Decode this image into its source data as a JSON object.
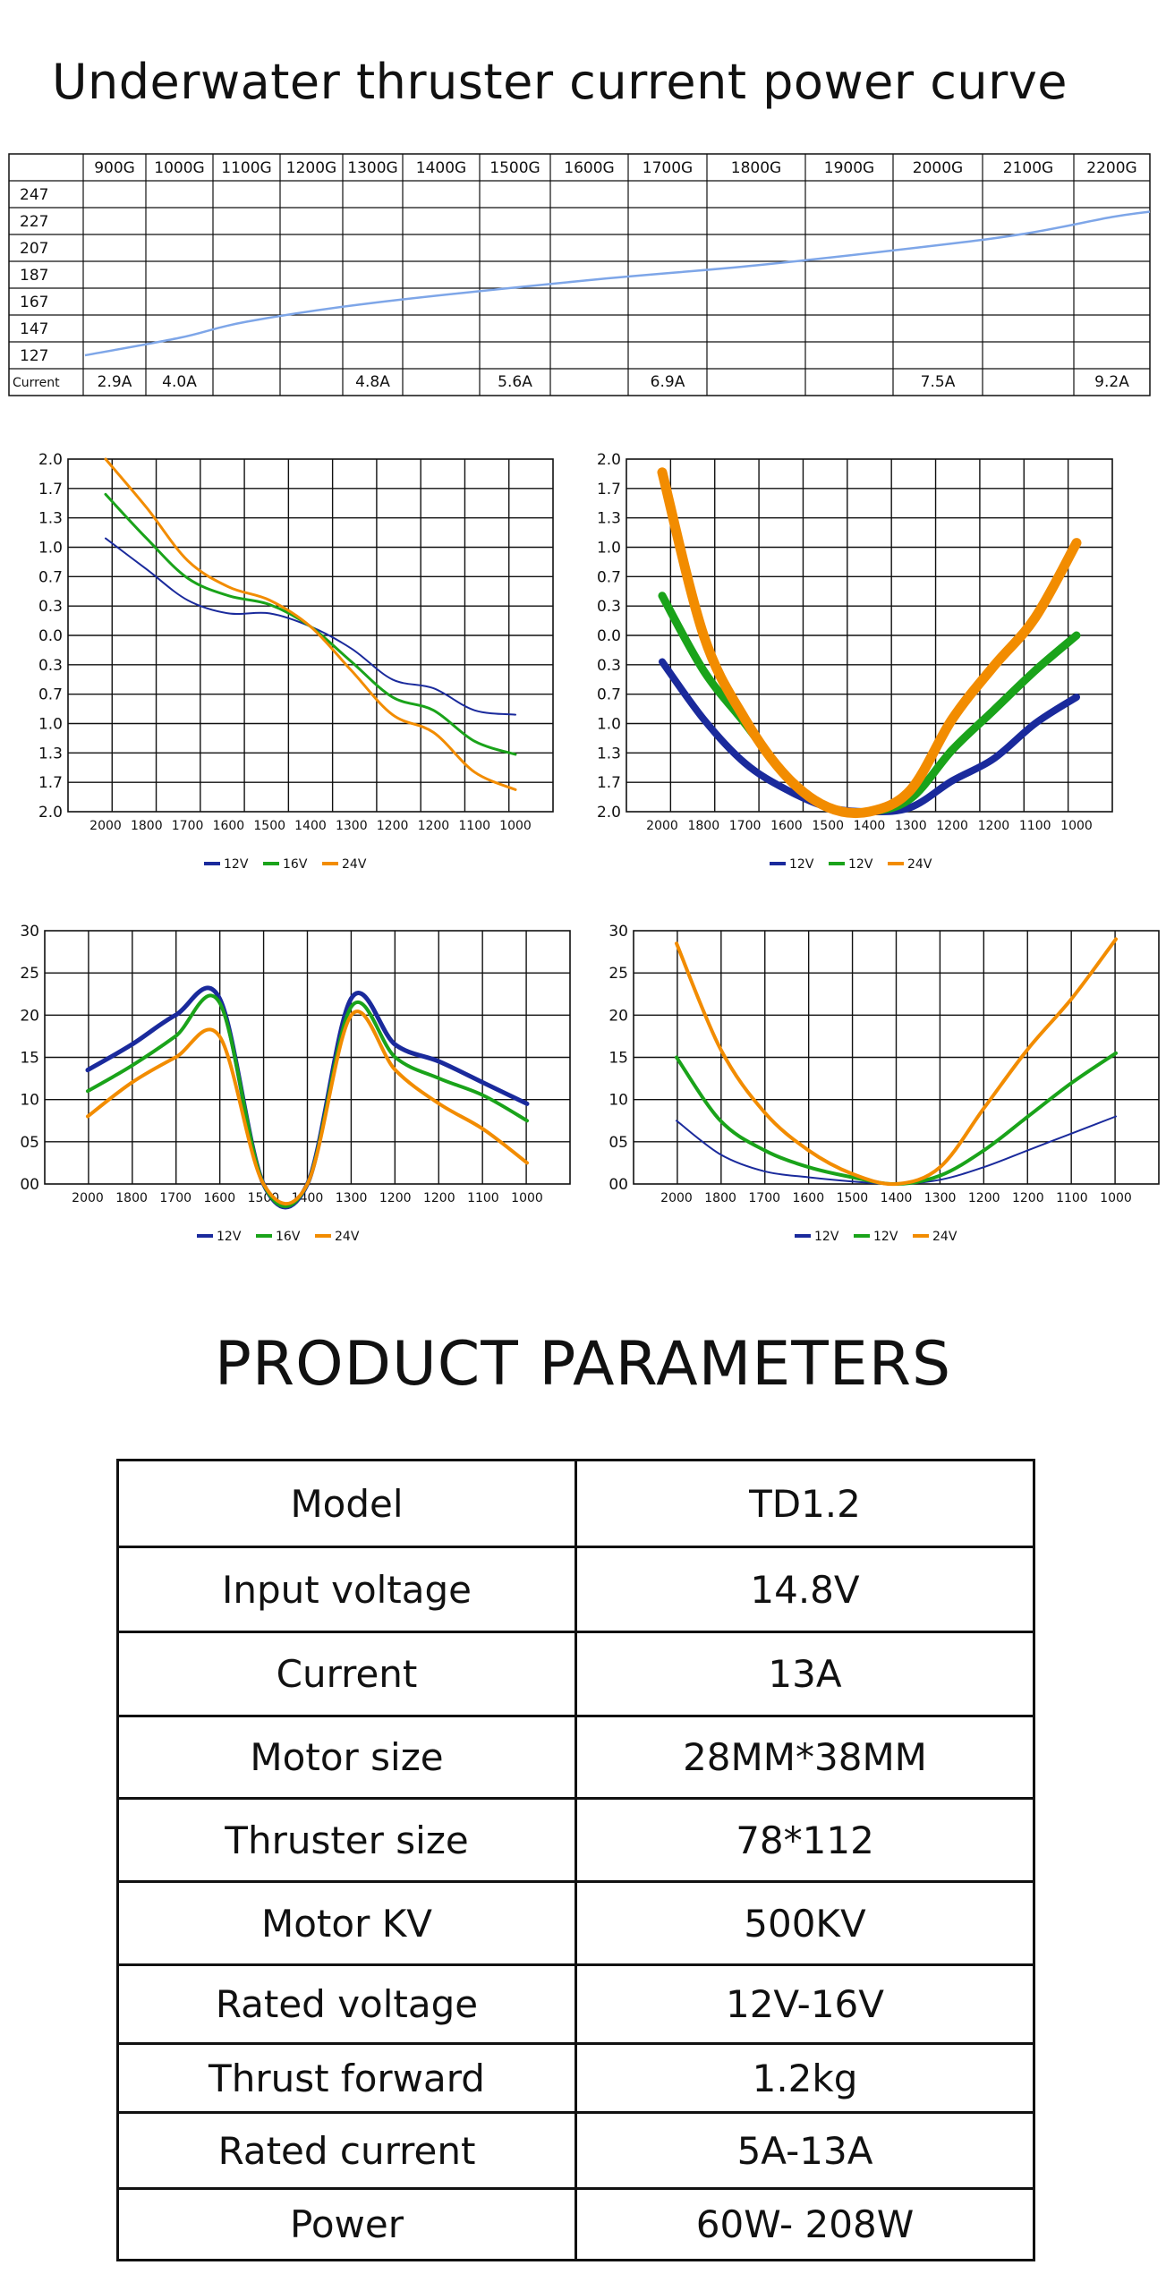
{
  "page_title": "Underwater thruster current power curve",
  "colors": {
    "v12": "#1a2a9c",
    "v16": "#1aa31a",
    "v24": "#f28c00",
    "line": "#7ea6e8",
    "grid": "#111111"
  },
  "chart_data": [
    {
      "type": "table",
      "title": "Underwater thruster current power curve",
      "columns": [
        "900G",
        "1000G",
        "1100G",
        "1200G",
        "1300G",
        "1400G",
        "1500G",
        "1600G",
        "1700G",
        "1800G",
        "1900G",
        "2000G",
        "2100G",
        "2200G"
      ],
      "rows": [
        "247",
        "227",
        "207",
        "187",
        "167",
        "147",
        "127"
      ],
      "current_label": "Current",
      "current_values": [
        "2.9A",
        "4.0A",
        "",
        "",
        "4.8A",
        "",
        "5.6A",
        "",
        "6.9A",
        "",
        "",
        "7.5A",
        "",
        "9.2A"
      ],
      "series": [
        {
          "name": "power",
          "x": [
            "900G",
            "1000G",
            "1100G",
            "1300G",
            "1600G",
            "1800G",
            "2000G",
            "2100G",
            "2200G"
          ],
          "values": [
            127,
            140,
            152,
            166,
            183,
            194,
            209,
            218,
            230
          ]
        }
      ]
    },
    {
      "type": "line",
      "ylabels": [
        "2.0",
        "1.7",
        "1.3",
        "1.0",
        "0.7",
        "0.3",
        "0.0",
        "0.3",
        "0.7",
        "1.0",
        "1.3",
        "1.7",
        "2.0"
      ],
      "categories": [
        "2000",
        "1800",
        "1700",
        "1600",
        "1500",
        "1400",
        "1300",
        "1200",
        "1200",
        "1100",
        "1000"
      ],
      "series": [
        {
          "name": "12V",
          "values": [
            1.1,
            0.75,
            0.4,
            0.25,
            0.25,
            0.1,
            -0.15,
            -0.5,
            -0.6,
            -0.85,
            -0.9
          ]
        },
        {
          "name": "16V",
          "values": [
            1.6,
            1.1,
            0.65,
            0.45,
            0.35,
            0.1,
            -0.3,
            -0.7,
            -0.85,
            -1.2,
            -1.35
          ]
        },
        {
          "name": "24V",
          "values": [
            2.0,
            1.45,
            0.85,
            0.55,
            0.4,
            0.1,
            -0.4,
            -0.9,
            -1.1,
            -1.55,
            -1.75
          ]
        }
      ]
    },
    {
      "type": "line",
      "ylabels": [
        "2.0",
        "1.7",
        "1.3",
        "1.0",
        "0.7",
        "0.3",
        "0.0",
        "0.3",
        "0.7",
        "1.0",
        "1.3",
        "1.7",
        "2.0"
      ],
      "categories": [
        "2000",
        "1800",
        "1700",
        "1600",
        "1500",
        "1400",
        "1300",
        "1200",
        "1200",
        "1100",
        "1000"
      ],
      "series": [
        {
          "name": "12V",
          "values": [
            -0.3,
            -0.95,
            -1.45,
            -1.75,
            -1.95,
            -2.0,
            -1.95,
            -1.65,
            -1.4,
            -1.0,
            -0.7
          ]
        },
        {
          "name": "12V",
          "values": [
            0.45,
            -0.4,
            -1.0,
            -1.6,
            -1.95,
            -2.0,
            -1.85,
            -1.3,
            -0.85,
            -0.4,
            0.0
          ]
        },
        {
          "name": "24V",
          "values": [
            1.85,
            0.0,
            -0.95,
            -1.6,
            -1.95,
            -2.0,
            -1.75,
            -0.95,
            -0.35,
            0.2,
            1.05
          ]
        }
      ]
    },
    {
      "type": "line",
      "ylabels": [
        "30",
        "25",
        "20",
        "15",
        "10",
        "05",
        "00"
      ],
      "categories": [
        "2000",
        "1800",
        "1700",
        "1600",
        "1500",
        "1400",
        "1300",
        "1200",
        "1200",
        "1100",
        "1000"
      ],
      "series": [
        {
          "name": "12V",
          "values": [
            13.5,
            16.5,
            20,
            22,
            0,
            0,
            22,
            16.5,
            14.5,
            12,
            9.5
          ]
        },
        {
          "name": "16V",
          "values": [
            11,
            14,
            17.5,
            21.5,
            0,
            0,
            21,
            15,
            12.5,
            10.5,
            7.5
          ]
        },
        {
          "name": "24V",
          "values": [
            8,
            12,
            15,
            17.5,
            0,
            0,
            20,
            13.5,
            9.5,
            6.5,
            2.5
          ]
        }
      ]
    },
    {
      "type": "line",
      "ylabels": [
        "30",
        "25",
        "20",
        "15",
        "10",
        "05",
        "00"
      ],
      "categories": [
        "2000",
        "1800",
        "1700",
        "1600",
        "1500",
        "1400",
        "1300",
        "1200",
        "1200",
        "1100",
        "1000"
      ],
      "series": [
        {
          "name": "12V",
          "values": [
            7.5,
            3.5,
            1.5,
            0.8,
            0.3,
            0,
            0.5,
            2,
            4,
            6,
            8
          ]
        },
        {
          "name": "12V",
          "values": [
            15,
            7.5,
            4,
            2,
            0.8,
            0,
            1,
            4,
            8,
            12,
            15.5
          ]
        },
        {
          "name": "24V",
          "values": [
            28.5,
            16,
            8.5,
            4,
            1.2,
            0,
            2,
            9,
            16,
            22,
            29
          ]
        }
      ]
    }
  ],
  "legend_labels": {
    "chart1": [
      "12V",
      "16V",
      "24V"
    ],
    "chart2": [
      "12V",
      "12V",
      "24V"
    ],
    "chart3": [
      "12V",
      "16V",
      "24V"
    ],
    "chart4": [
      "12V",
      "12V",
      "24V"
    ]
  },
  "params": {
    "title": "PRODUCT PARAMETERS",
    "rows": [
      {
        "label": "Model",
        "value": "TD1.2"
      },
      {
        "label": "Input voltage",
        "value": "14.8V"
      },
      {
        "label": "Current",
        "value": "13A"
      },
      {
        "label": "Motor size",
        "value": "28MM*38MM"
      },
      {
        "label": "Thruster size",
        "value": "78*112"
      },
      {
        "label": "Motor KV",
        "value": "500KV"
      },
      {
        "label": "Rated voltage",
        "value": "12V-16V"
      },
      {
        "label": "Thrust forward",
        "value": "1.2kg"
      },
      {
        "label": "Rated current",
        "value": "5A-13A"
      },
      {
        "label": "Power",
        "value": "60W- 208W"
      }
    ]
  }
}
